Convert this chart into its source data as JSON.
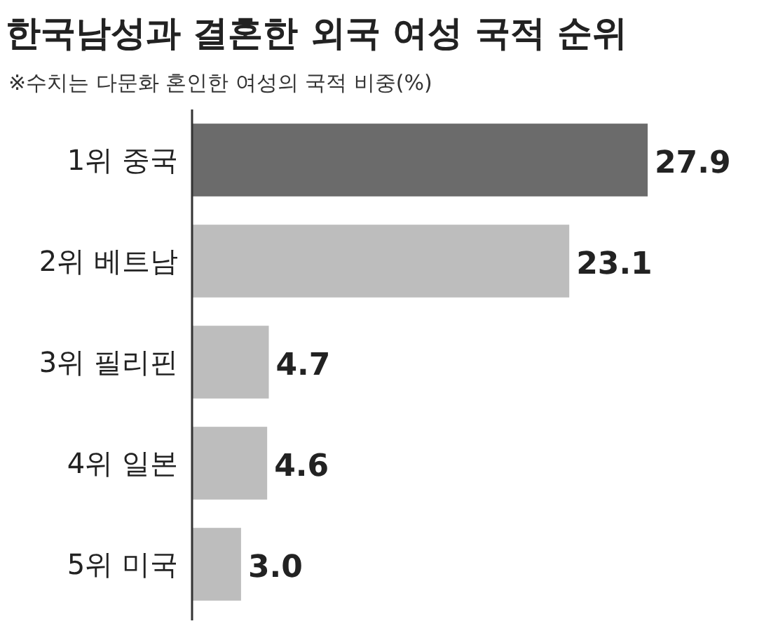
{
  "chart_data": {
    "type": "bar",
    "orientation": "horizontal",
    "title": "한국남성과 결혼한 외국 여성 국적 순위",
    "subtitle": "※수치는 다문화 혼인한 여성의 국적 비중(%)",
    "categories": [
      "1위 중국",
      "2위 베트남",
      "3위 필리핀",
      "4위 일본",
      "5위 미국"
    ],
    "values": [
      27.9,
      23.1,
      4.7,
      4.6,
      3.0
    ],
    "colors": [
      "#6b6b6b",
      "#bdbdbd",
      "#bdbdbd",
      "#bdbdbd",
      "#bdbdbd"
    ],
    "value_labels": [
      "27.9",
      "23.1",
      "4.7",
      "4.6",
      "3.0"
    ]
  }
}
